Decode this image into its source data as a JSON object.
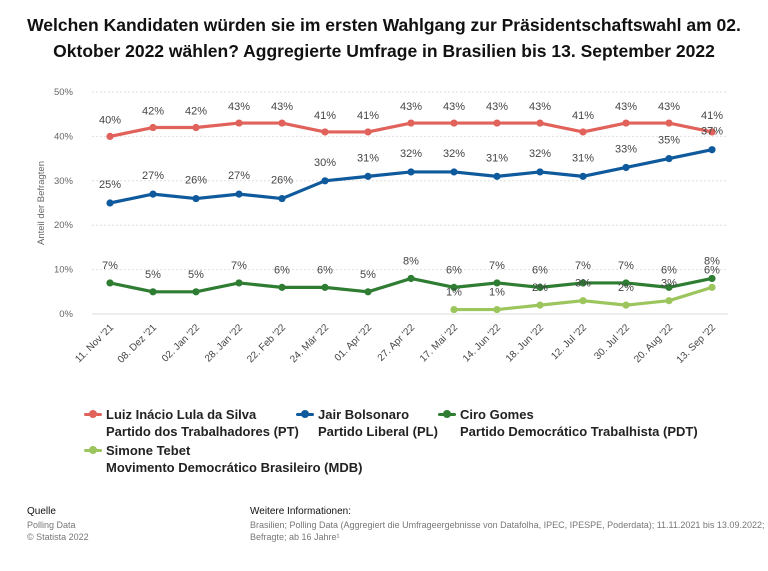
{
  "title": "Welchen Kandidaten würden sie im ersten Wahlgang zur Präsidentschaftswahl am 02. Oktober 2022 wählen? Aggregierte Umfrage in Brasilien bis 13. September 2022",
  "chart_data": {
    "type": "line",
    "title": "Welchen Kandidaten würden sie im ersten Wahlgang zur Präsidentschaftswahl am 02. Oktober 2022 wählen? Aggregierte Umfrage in Brasilien bis 13. September 2022",
    "xlabel": "",
    "ylabel": "Anteil der Befragten",
    "ylim": [
      0,
      50
    ],
    "yticks": [
      "0%",
      "10%",
      "20%",
      "30%",
      "40%",
      "50%"
    ],
    "grid": true,
    "legend_position": "bottom",
    "categories": [
      "11. Nov '21",
      "08. Dez '21",
      "02. Jan '22",
      "28. Jan '22",
      "22. Feb '22",
      "24. Mär '22",
      "01. Apr '22",
      "27. Apr '22",
      "17. Mai '22",
      "14. Jun '22",
      "18. Jun '22",
      "12. Jul '22",
      "30. Jul '22",
      "20. Aug '22",
      "13. Sep '22"
    ],
    "series": [
      {
        "name": "Luiz Inácio Lula da Silva",
        "subtitle": "Partido dos Trabalhadores (PT)",
        "color": "#e0625a",
        "values": [
          40,
          42,
          42,
          43,
          43,
          41,
          41,
          43,
          43,
          43,
          43,
          41,
          43,
          43,
          41
        ]
      },
      {
        "name": "Jair Bolsonaro",
        "subtitle": "Partido Liberal (PL)",
        "color": "#0f5a9c",
        "values": [
          25,
          27,
          26,
          27,
          26,
          30,
          31,
          32,
          32,
          31,
          32,
          31,
          33,
          35,
          37
        ]
      },
      {
        "name": "Ciro Gomes",
        "subtitle": "Partido Democrático Trabalhista (PDT)",
        "color": "#2e7d32",
        "values": [
          7,
          5,
          5,
          7,
          6,
          6,
          5,
          8,
          6,
          7,
          6,
          7,
          7,
          6,
          8
        ]
      },
      {
        "name": "Simone Tebet",
        "subtitle": "Movimento Democrático Brasileiro (MDB)",
        "color": "#9cc55e",
        "values": [
          null,
          null,
          null,
          null,
          null,
          null,
          null,
          null,
          1,
          1,
          2,
          3,
          2,
          3,
          6
        ]
      }
    ]
  },
  "footer": {
    "source_heading": "Quelle",
    "source_lines": [
      "Polling Data",
      "© Statista 2022"
    ],
    "info_heading": "Weitere Informationen:",
    "info_lines": [
      "Brasilien; Polling Data (Aggregiert die Umfrageergebnisse von Datafolha, IPEC, IPESPE, Poderdata); 11.11.2021 bis 13.09.2022;",
      "Befragte; ab 16 Jahre¹"
    ]
  }
}
